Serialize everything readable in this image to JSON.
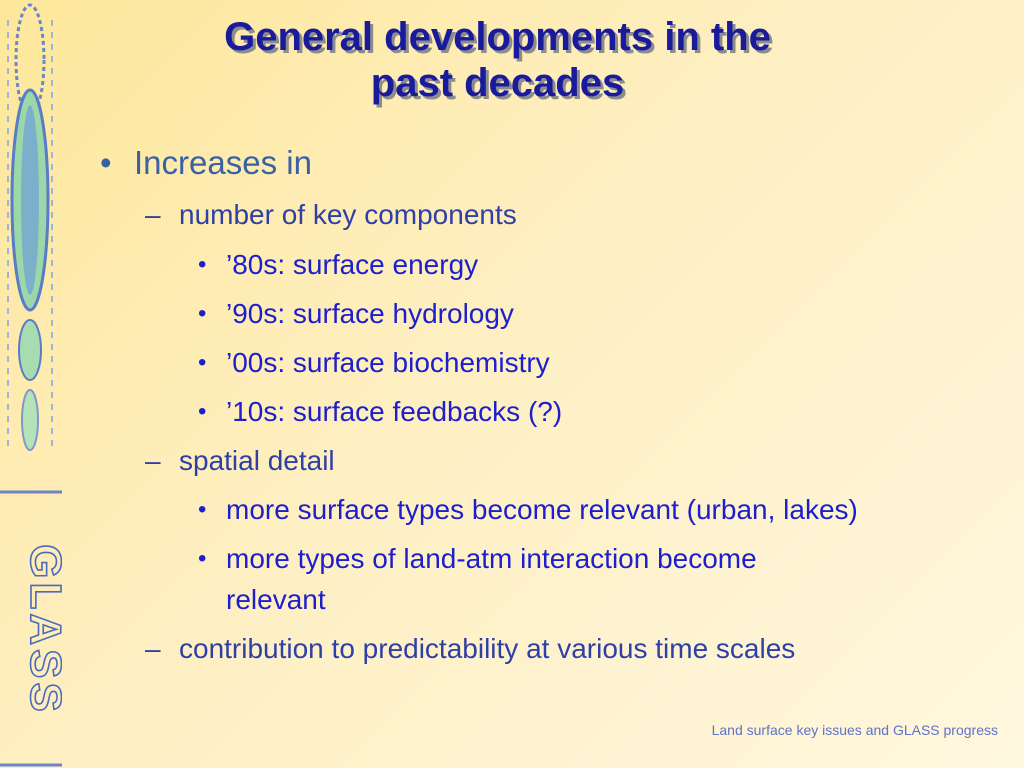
{
  "slide": {
    "title_line1": "General developments in the",
    "title_line2": "past decades",
    "footer": "Land surface key issues and GLASS progress",
    "logo_text": "GLASS",
    "bullets": {
      "b1": "Increases in",
      "b1_1": "number of key components",
      "b1_1_1": "’80s: surface energy",
      "b1_1_2": "’90s: surface hydrology",
      "b1_1_3": "’00s: surface biochemistry",
      "b1_1_4": "’10s: surface feedbacks (?)",
      "b1_2": "spatial detail",
      "b1_2_1": "more surface types become relevant (urban, lakes)",
      "b1_2_2a": "more types of land-atm interaction become",
      "b1_2_2b": "relevant",
      "b1_3": "contribution to predictability at various time scales"
    },
    "bullet_glyphs": {
      "l1": "•",
      "l2": "–",
      "l3": "•"
    },
    "colors": {
      "title": "#1a1a9c",
      "level1": "#3a61a4",
      "level2": "#2e3fa6",
      "level3": "#1d1fcc",
      "footer": "#5d74c8"
    }
  }
}
